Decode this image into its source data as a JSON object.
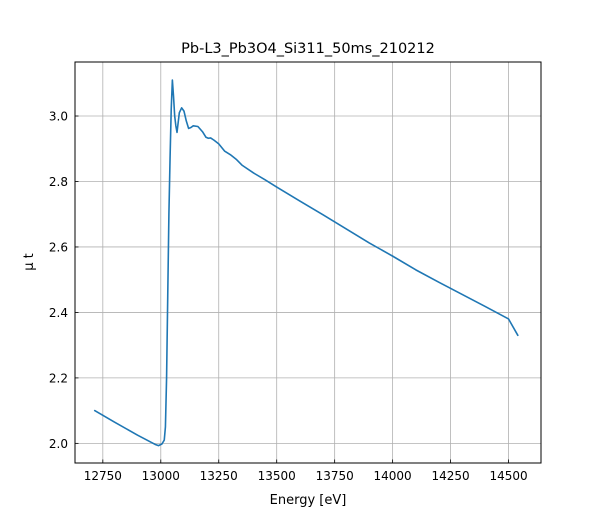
{
  "chart_data": {
    "type": "line",
    "title": "Pb-L3_Pb3O4_Si311_50ms_210212",
    "xlabel": "Energy [eV]",
    "ylabel": "μ t",
    "xlim": [
      12630,
      14640
    ],
    "ylim": [
      1.94,
      3.165
    ],
    "x_ticks": [
      12750,
      13000,
      13250,
      13500,
      13750,
      14000,
      14250,
      14500
    ],
    "x_tick_labels": [
      "12750",
      "13000",
      "13250",
      "13500",
      "13750",
      "14000",
      "14250",
      "14500"
    ],
    "y_ticks": [
      2.0,
      2.2,
      2.4,
      2.6,
      2.8,
      3.0
    ],
    "y_tick_labels": [
      "2.0",
      "2.2",
      "2.4",
      "2.6",
      "2.8",
      "3.0"
    ],
    "grid": true,
    "legend": "none",
    "line_color": "#1f77b4",
    "series": [
      {
        "x": [
          12715,
          12800,
          12900,
          12975,
          12990,
          13005,
          13015,
          13020,
          13025,
          13030,
          13035,
          13040,
          13045,
          13050,
          13055,
          13060,
          13065,
          13070,
          13080,
          13090,
          13100,
          13110,
          13120,
          13130,
          13140,
          13160,
          13180,
          13195,
          13205,
          13215,
          13230,
          13250,
          13275,
          13300,
          13325,
          13350,
          13400,
          13450,
          13500,
          13600,
          13700,
          13800,
          13900,
          14000,
          14100,
          14200,
          14300,
          14400,
          14500,
          14540
        ],
        "y": [
          2.1,
          2.065,
          2.025,
          1.997,
          1.993,
          1.998,
          2.01,
          2.05,
          2.2,
          2.45,
          2.7,
          2.87,
          3.02,
          3.11,
          3.06,
          3.0,
          2.97,
          2.95,
          3.01,
          3.025,
          3.015,
          2.985,
          2.962,
          2.965,
          2.97,
          2.968,
          2.952,
          2.935,
          2.932,
          2.933,
          2.926,
          2.915,
          2.893,
          2.882,
          2.868,
          2.85,
          2.826,
          2.805,
          2.783,
          2.74,
          2.698,
          2.655,
          2.612,
          2.572,
          2.53,
          2.492,
          2.455,
          2.418,
          2.38,
          2.33
        ]
      }
    ]
  }
}
